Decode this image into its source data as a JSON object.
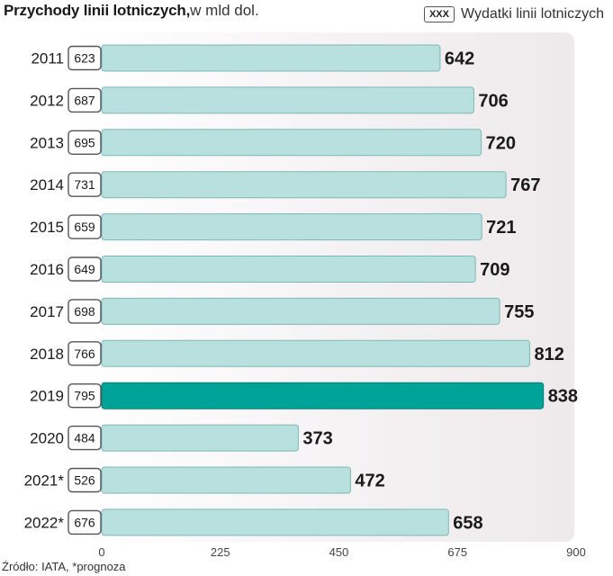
{
  "title": "Przychody linii lotniczych,",
  "unit": "w mld dol.",
  "legend": {
    "box_text": "XXX",
    "label": "Wydatki linii lotniczych"
  },
  "source": "Źródło: IATA, *prognoza",
  "colors": {
    "bar": "#b8e0de",
    "bar_border": "#7fb7b4",
    "highlight": "#00a397",
    "highlight_border": "#007f76"
  },
  "chart_data": {
    "type": "bar",
    "orientation": "horizontal",
    "categories": [
      "2011",
      "2012",
      "2013",
      "2014",
      "2015",
      "2016",
      "2017",
      "2018",
      "2019",
      "2020",
      "2021*",
      "2022*"
    ],
    "series": [
      {
        "name": "",
        "values": [
          642,
          706,
          720,
          767,
          721,
          709,
          755,
          812,
          838,
          373,
          472,
          658
        ]
      },
      {
        "name": "Wydatki linii lotniczych",
        "values": [
          623,
          687,
          695,
          731,
          659,
          649,
          698,
          766,
          795,
          484,
          526,
          676
        ]
      }
    ],
    "highlight_category": "2019",
    "xlim": [
      0,
      900
    ],
    "xticks": [
      0,
      225,
      450,
      675,
      900
    ]
  }
}
